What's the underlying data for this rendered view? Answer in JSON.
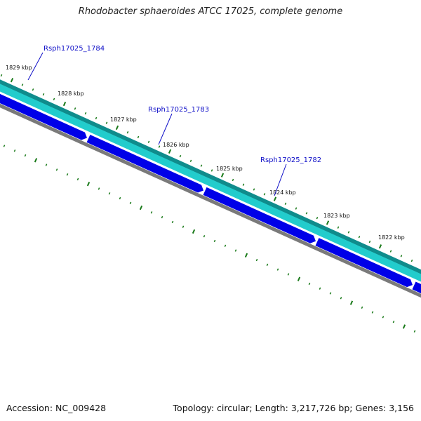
{
  "title": "Rhodobacter sphaeroides ATCC 17025, complete genome",
  "footer": {
    "accession_label": "Accession:",
    "accession": "NC_009428",
    "topology_label": "Topology:",
    "topology": "circular",
    "length_label": "Length:",
    "length": "3,217,726 bp",
    "genes_label": "Genes:",
    "genes": "3,156"
  },
  "colors": {
    "outer_track": "#0f8c8c",
    "inner_track": "#22cccc",
    "gene_fill": "#0000e8",
    "backbone": "#7a7a7a",
    "tick": "#1a7a1a",
    "gene_label": "#1010c8"
  },
  "position_ticks": [
    "1829 kbp",
    "1828 kbp",
    "1827 kbp",
    "1826 kbp",
    "1825 kbp",
    "1824 kbp",
    "1823 kbp",
    "1822 kbp"
  ],
  "gene_labels": [
    "Rsph17025_1784",
    "Rsph17025_1783",
    "Rsph17025_1782"
  ]
}
